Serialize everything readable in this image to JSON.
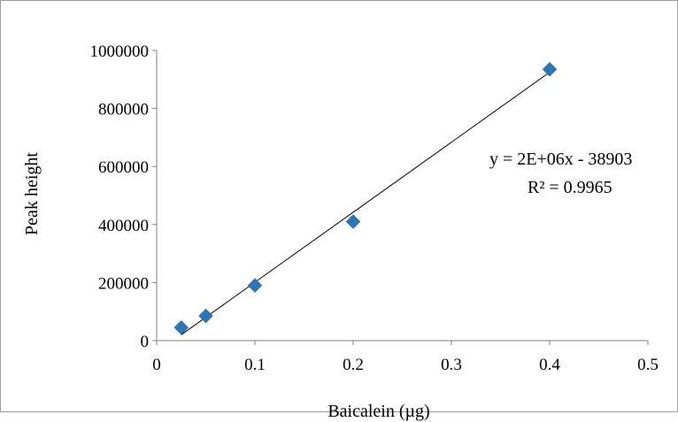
{
  "chart_data": {
    "type": "scatter",
    "title": "",
    "xlabel": "Baicalein (µg)",
    "ylabel": "Peak height",
    "xlim": [
      0,
      0.5
    ],
    "ylim": [
      0,
      1000000
    ],
    "x_ticks": [
      "0",
      "0.1",
      "0.2",
      "0.3",
      "0.4",
      "0.5"
    ],
    "y_ticks": [
      "0",
      "200000",
      "400000",
      "600000",
      "800000",
      "1000000"
    ],
    "grid": false,
    "legend": "none",
    "marker_color": "#2E75B6",
    "series": [
      {
        "x": [
          0.025,
          0.05,
          0.1,
          0.2,
          0.4
        ],
        "y": [
          45000,
          85000,
          190000,
          410000,
          935000
        ]
      }
    ],
    "trendline": {
      "type": "linear",
      "x_range": [
        0.025,
        0.4
      ],
      "y_range": [
        20000,
        925000
      ],
      "color": "#000000"
    },
    "annotations": {
      "equation": "y = 2E+06x - 38903",
      "r_squared": "R² = 0.9965"
    }
  }
}
